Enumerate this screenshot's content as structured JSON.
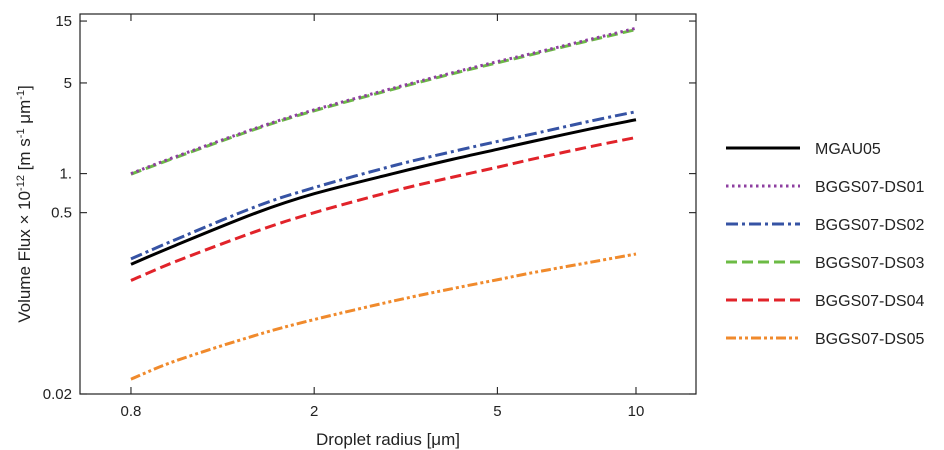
{
  "chart_data": {
    "type": "line",
    "xlabel": "Droplet radius [μm]",
    "ylabel": {
      "prefix": "Volume Flux × 10",
      "prefix_sup": "-12",
      "unit_open": " [m s",
      "unit_sup1": "-1",
      "unit_mid": " μm",
      "unit_sup2": "-1",
      "unit_close": "]"
    },
    "x_scale": "log",
    "y_scale": "log",
    "xlim": [
      0.62,
      13.5
    ],
    "ylim": [
      0.02,
      17
    ],
    "x_ticks": [
      0.8,
      2,
      5,
      10
    ],
    "x_tick_labels": [
      "0.8",
      "2",
      "5",
      "10"
    ],
    "y_ticks": [
      0.02,
      0.5,
      1,
      5,
      15
    ],
    "y_tick_labels": [
      "0.02",
      "0.5",
      "1.",
      "5",
      "15"
    ],
    "grid": false,
    "legend_position": "right",
    "x": [
      0.8,
      1,
      1.5,
      2,
      3,
      4,
      5,
      6,
      8,
      10
    ],
    "series": [
      {
        "name": "MGAU05",
        "color": "#000000",
        "dash": "solid",
        "values": [
          0.2,
          0.28,
          0.5,
          0.7,
          1.01,
          1.29,
          1.54,
          1.78,
          2.22,
          2.6
        ]
      },
      {
        "name": "BGGS07-DS01",
        "color": "#8e3fa0",
        "dash": "dot",
        "values": [
          1.0,
          1.35,
          2.25,
          3.1,
          4.6,
          6.0,
          7.3,
          8.5,
          10.9,
          13.2
        ]
      },
      {
        "name": "BGGS07-DS02",
        "color": "#3653a4",
        "dash": "dashdot",
        "values": [
          0.22,
          0.31,
          0.56,
          0.78,
          1.16,
          1.48,
          1.77,
          2.03,
          2.55,
          3.0
        ]
      },
      {
        "name": "BGGS07-DS03",
        "color": "#6cbb45",
        "dash": "dash",
        "values": [
          0.99,
          1.33,
          2.22,
          3.05,
          4.52,
          5.9,
          7.15,
          8.35,
          10.7,
          12.9
        ]
      },
      {
        "name": "BGGS07-DS04",
        "color": "#e1232a",
        "dash": "dash",
        "values": [
          0.15,
          0.21,
          0.36,
          0.5,
          0.74,
          0.94,
          1.12,
          1.3,
          1.62,
          1.9
        ]
      },
      {
        "name": "BGGS07-DS05",
        "color": "#f08a2c",
        "dash": "dashdotdot",
        "values": [
          0.026,
          0.036,
          0.057,
          0.075,
          0.105,
          0.13,
          0.152,
          0.173,
          0.208,
          0.24
        ]
      }
    ]
  }
}
